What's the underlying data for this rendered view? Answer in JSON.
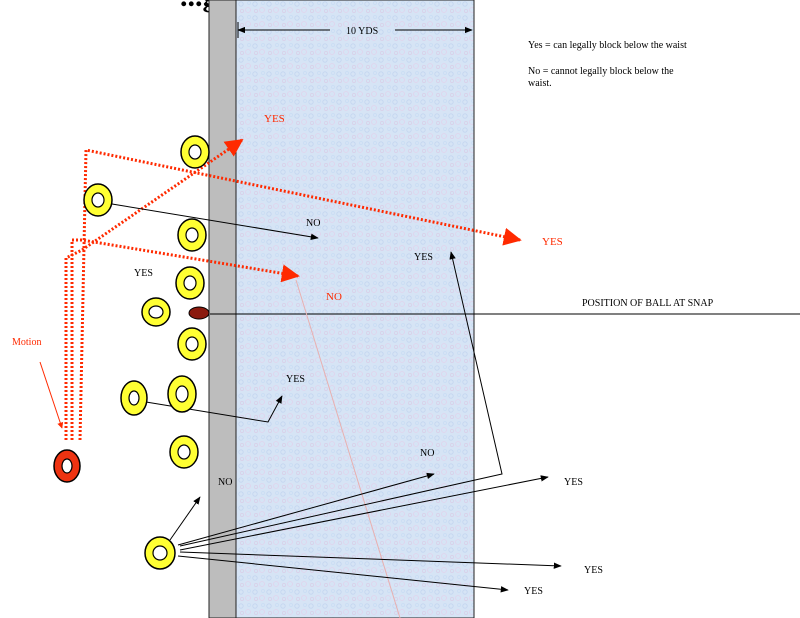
{
  "title": "...g ... (...)",
  "zone_label": "10 YDS",
  "legend": {
    "yes": "Yes  = can legally block below the waist",
    "no_line1": "No = cannot legally block below the",
    "no_line2": "waist."
  },
  "snap_label": "POSITION OF BALL AT SNAP",
  "motion_label": "Motion",
  "labels": {
    "red_yes_top": "YES",
    "red_yes_right": "YES",
    "red_no": "NO",
    "black_no_top": "NO",
    "black_yes_left": "YES",
    "black_yes_mid": "YES",
    "black_yes_right_col": "YES",
    "black_no_lower": "NO",
    "black_no_left": "NO",
    "black_yes_low1": "YES",
    "black_yes_low2": "YES",
    "black_yes_low3": "YES"
  },
  "colors": {
    "zone_fill": "#d8e6f6",
    "wall": "#bdbdbd",
    "player_fill": "#ffff33",
    "motion_player": "#ee3311",
    "ball": "#8b1a0e",
    "red": "#ff2a00"
  }
}
